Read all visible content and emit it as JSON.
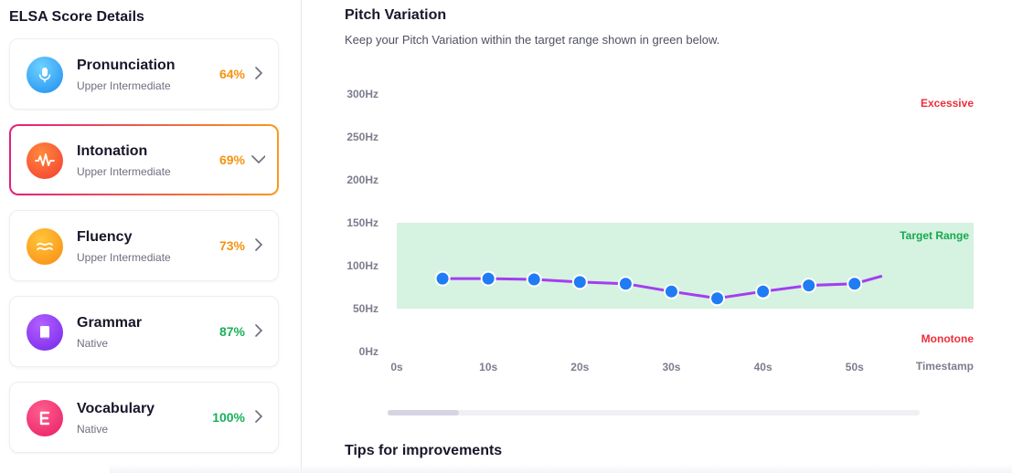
{
  "left": {
    "title": "ELSA Score Details",
    "cards": [
      {
        "name": "Pronunciation",
        "level": "Upper Intermediate",
        "percent": "64%",
        "icon": "microphone-icon",
        "color": "#2fa7f5",
        "status": "orange",
        "expanded": false
      },
      {
        "name": "Intonation",
        "level": "Upper Intermediate",
        "percent": "69%",
        "icon": "wave-icon",
        "color": "#f5562a",
        "status": "orange",
        "expanded": true
      },
      {
        "name": "Fluency",
        "level": "Upper Intermediate",
        "percent": "73%",
        "icon": "approx-icon",
        "color": "#f9a21a",
        "status": "orange",
        "expanded": false
      },
      {
        "name": "Grammar",
        "level": "Native",
        "percent": "87%",
        "icon": "book-icon",
        "color": "#8d3cf2",
        "status": "green",
        "expanded": false
      },
      {
        "name": "Vocabulary",
        "level": "Native",
        "percent": "100%",
        "icon": "letter-e-icon",
        "color": "#f0307a",
        "status": "green",
        "expanded": false
      }
    ]
  },
  "right": {
    "title": "Pitch Variation",
    "subtitle": "Keep your Pitch Variation within the target range shown in green below.",
    "tips_title": "Tips for improvements"
  },
  "chart_data": {
    "type": "line",
    "title": "",
    "xlabel": "Timestamp",
    "ylabel": "",
    "x_ticks": [
      "0s",
      "10s",
      "20s",
      "30s",
      "40s",
      "50s"
    ],
    "y_ticks": [
      "0Hz",
      "50Hz",
      "100Hz",
      "150Hz",
      "200Hz",
      "250Hz",
      "300Hz"
    ],
    "xlim": [
      0,
      63
    ],
    "ylim": [
      0,
      300
    ],
    "target_range": {
      "label": "Target Range",
      "min": 50,
      "max": 150,
      "color": "#d6f2e0"
    },
    "zone_labels": {
      "excessive": "Excessive",
      "monotone": "Monotone"
    },
    "series": [
      {
        "color": "#a23ef0",
        "marker_color": "#1f7cf4",
        "x": [
          5,
          10,
          15,
          20,
          25,
          30,
          35,
          40,
          45,
          50,
          53
        ],
        "y": [
          85,
          85,
          84,
          81,
          79,
          70,
          62,
          70,
          77,
          79,
          88
        ],
        "markers": [
          true,
          true,
          true,
          true,
          true,
          true,
          true,
          true,
          true,
          true,
          false
        ]
      }
    ]
  },
  "scroll": {
    "position": 0.13
  }
}
